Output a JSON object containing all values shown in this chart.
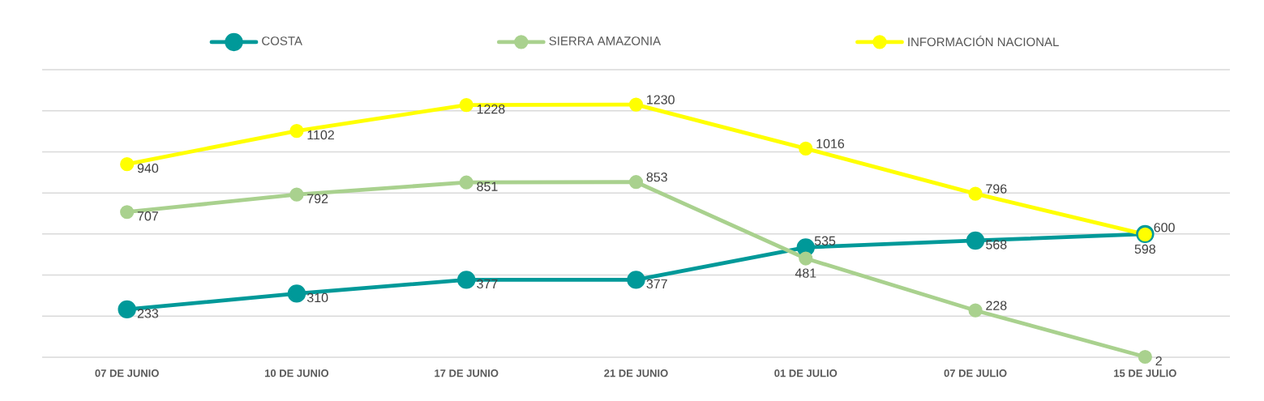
{
  "chart_data": {
    "type": "line",
    "categories": [
      "07 DE JUNIO",
      "10 DE JUNIO",
      "17 DE JUNIO",
      "21 DE JUNIO",
      "01 DE JULIO",
      "07 DE JULIO",
      "15 DE JULIO"
    ],
    "series": [
      {
        "name": "COSTA",
        "color": "#009999",
        "values": [
          233,
          310,
          377,
          377,
          535,
          568,
          600
        ]
      },
      {
        "name": "SIERRA AMAZONIA",
        "color": "#a9d18e",
        "values": [
          707,
          792,
          851,
          853,
          481,
          228,
          2
        ]
      },
      {
        "name": "INFORMACIÓN NACIONAL",
        "color": "#ffff00",
        "values": [
          940,
          1102,
          1228,
          1230,
          1016,
          796,
          598
        ]
      }
    ],
    "ylim": [
      0,
      1400
    ],
    "yticks": [
      {
        "value": 0,
        "label": null
      },
      {
        "value": 200,
        "label": null
      },
      {
        "value": 400,
        "label": null
      },
      {
        "value": 600,
        "label": null
      },
      {
        "value": 800,
        "label": null
      },
      {
        "value": 1000,
        "label": null
      },
      {
        "value": 1200,
        "label": null
      },
      {
        "value": 1400,
        "label": null
      }
    ],
    "grid": "y",
    "tick_labels": "x",
    "legend": "top",
    "marker": "circle",
    "line_style": "solid",
    "data_labels": true
  }
}
